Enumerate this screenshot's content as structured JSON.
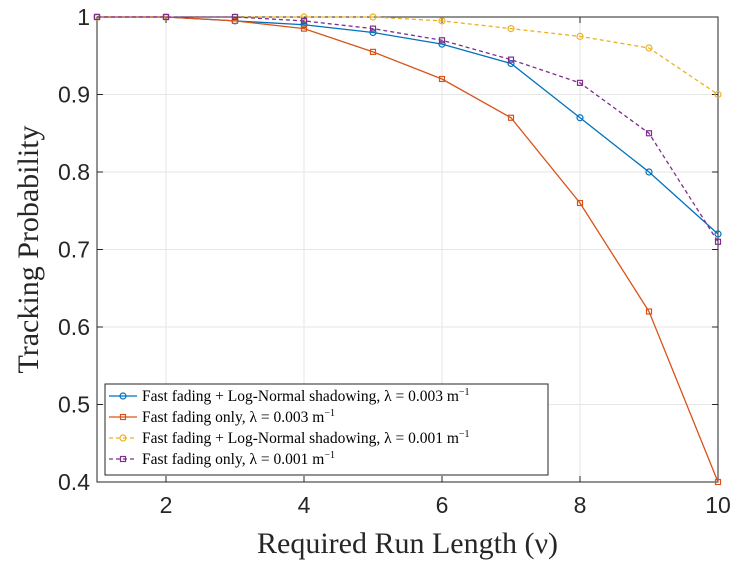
{
  "chart_data": {
    "type": "line",
    "xlabel": "Required Run Length (ν)",
    "ylabel": "Tracking Probability",
    "xlim": [
      1,
      10
    ],
    "ylim": [
      0.4,
      1.0
    ],
    "xticks": [
      2,
      4,
      6,
      8,
      10
    ],
    "yticks": [
      0.4,
      0.5,
      0.6,
      0.7,
      0.8,
      0.9,
      1.0
    ],
    "ytick_labels": [
      "0.4",
      "0.5",
      "0.6",
      "0.7",
      "0.8",
      "0.9",
      "1"
    ],
    "grid": true,
    "legend_position": "bottom-left",
    "x": [
      1,
      2,
      3,
      4,
      5,
      6,
      7,
      8,
      9,
      10
    ],
    "series": [
      {
        "name": "Fast fading + Log-Normal shadowing, λ = 0.003 m",
        "unit_exp": "−1",
        "color": "#0072BD",
        "style": "solid",
        "marker": "circle",
        "values": [
          1.0,
          1.0,
          0.995,
          0.99,
          0.98,
          0.965,
          0.94,
          0.87,
          0.8,
          0.72
        ]
      },
      {
        "name": "Fast fading only, λ = 0.003 m",
        "unit_exp": "−1",
        "color": "#D95319",
        "style": "solid",
        "marker": "square",
        "values": [
          1.0,
          1.0,
          0.995,
          0.985,
          0.955,
          0.92,
          0.87,
          0.76,
          0.62,
          0.4
        ]
      },
      {
        "name": "Fast fading + Log-Normal shadowing, λ = 0.001 m",
        "unit_exp": "−1",
        "color": "#EDB120",
        "style": "dashed",
        "marker": "circle",
        "values": [
          1.0,
          1.0,
          1.0,
          1.0,
          1.0,
          0.995,
          0.985,
          0.975,
          0.96,
          0.9
        ]
      },
      {
        "name": "Fast fading only, λ = 0.001 m",
        "unit_exp": "−1",
        "color": "#7E2F8E",
        "style": "dashed",
        "marker": "square",
        "values": [
          1.0,
          1.0,
          1.0,
          0.995,
          0.985,
          0.97,
          0.945,
          0.915,
          0.85,
          0.71
        ]
      }
    ]
  }
}
